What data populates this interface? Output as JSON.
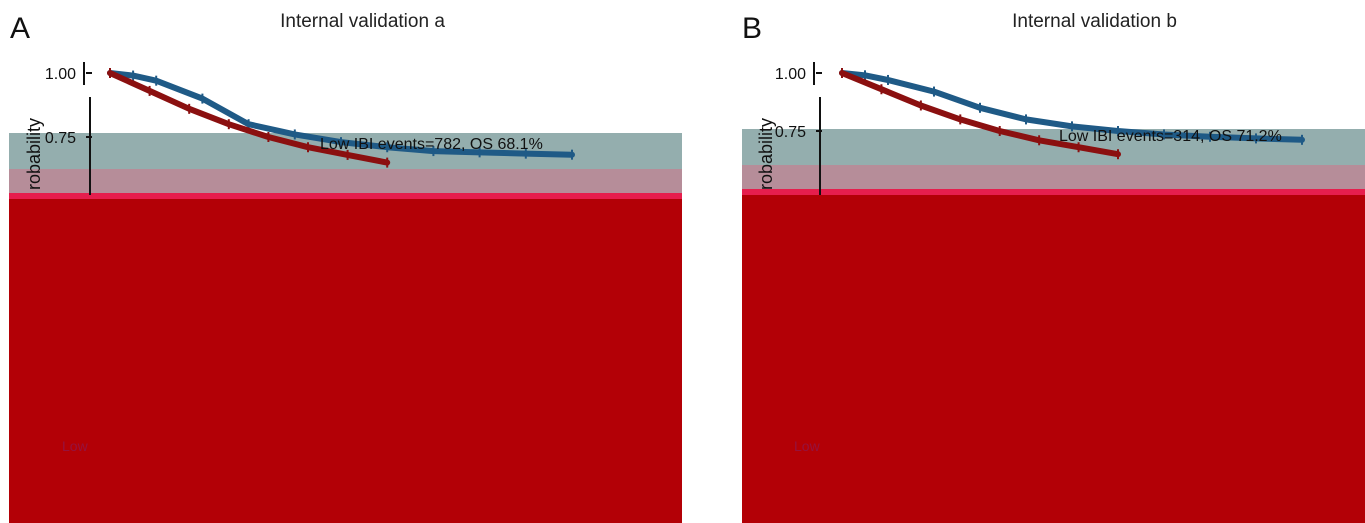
{
  "chart_data": [
    {
      "type": "line",
      "panel": "A",
      "title": "Internal validation a",
      "ylabel": "robability",
      "ylim": [
        0,
        1
      ],
      "yticks": [
        "1.00",
        "0.75"
      ],
      "annotations": [
        "Low IBI events=782, OS 68.1%"
      ],
      "legend": "none",
      "grid": false,
      "series": [
        {
          "color": "#1f5a86",
          "x": [
            0,
            0.05,
            0.1,
            0.2,
            0.3,
            0.4,
            0.5,
            0.6,
            0.7,
            0.8,
            0.9,
            1.0
          ],
          "values": [
            1.0,
            0.99,
            0.97,
            0.9,
            0.8,
            0.76,
            0.73,
            0.71,
            0.695,
            0.69,
            0.685,
            0.681
          ]
        },
        {
          "color": "#8b1010",
          "x": [
            0,
            0.05,
            0.1,
            0.15,
            0.2,
            0.25,
            0.3,
            0.35
          ],
          "values": [
            1.0,
            0.93,
            0.86,
            0.8,
            0.75,
            0.71,
            0.68,
            0.65
          ]
        }
      ]
    },
    {
      "type": "line",
      "panel": "B",
      "title": "Internal validation b",
      "ylabel": "robability",
      "ylim": [
        0,
        1
      ],
      "yticks": [
        "1.00",
        "0.75"
      ],
      "annotations": [
        "Low IBI events=314, OS 71.2%"
      ],
      "legend": "none",
      "grid": false,
      "series": [
        {
          "color": "#1f5a86",
          "x": [
            0,
            0.05,
            0.1,
            0.2,
            0.3,
            0.4,
            0.5,
            0.6,
            0.7,
            0.8,
            0.9,
            1.0
          ],
          "values": [
            1.0,
            0.99,
            0.97,
            0.92,
            0.85,
            0.8,
            0.77,
            0.75,
            0.735,
            0.725,
            0.718,
            0.712
          ]
        },
        {
          "color": "#8b1010",
          "x": [
            0,
            0.05,
            0.1,
            0.15,
            0.2,
            0.25,
            0.3,
            0.35
          ],
          "values": [
            1.0,
            0.93,
            0.86,
            0.8,
            0.75,
            0.71,
            0.68,
            0.65
          ]
        }
      ]
    }
  ]
}
